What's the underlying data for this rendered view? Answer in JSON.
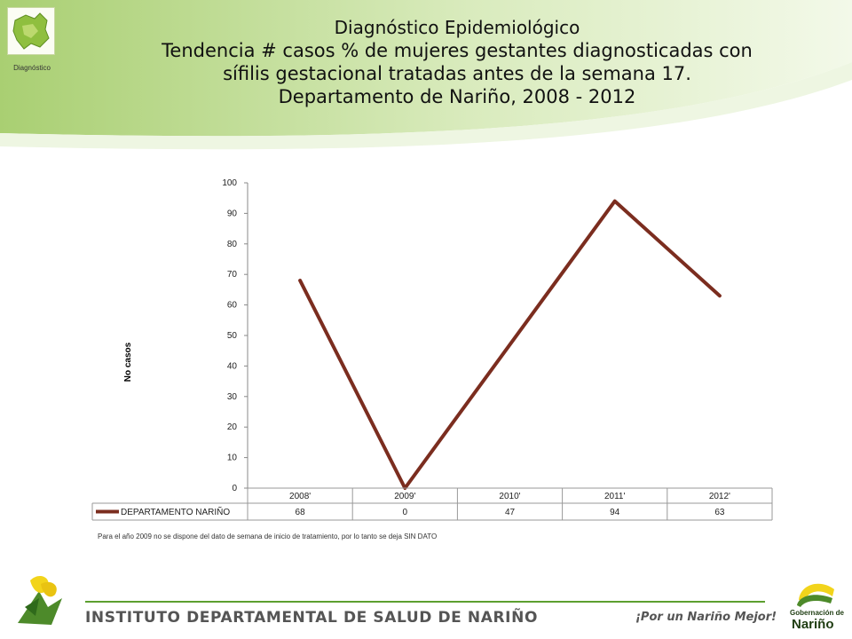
{
  "header": {
    "logo_caption": "Diagnóstico",
    "title_lines": [
      "Diagnóstico Epidemiológico",
      "Tendencia # casos % de mujeres gestantes diagnosticadas con",
      "sífilis gestacional tratadas antes de la semana 17.",
      "Departamento de Nariño,  2008 - 2012"
    ]
  },
  "chart_data": {
    "type": "line",
    "categories": [
      "2008'",
      "2009'",
      "2010'",
      "2011'",
      "2012'"
    ],
    "series": [
      {
        "name": "DEPARTAMENTO NARIÑO",
        "values": [
          68,
          0,
          47,
          94,
          63
        ],
        "color": "#7b2d1f"
      }
    ],
    "title": "",
    "xlabel": "",
    "ylabel": "No  casos",
    "ylim": [
      0,
      100
    ],
    "yticks": [
      0,
      10,
      20,
      30,
      40,
      50,
      60,
      70,
      80,
      90,
      100
    ],
    "legend": "data-table-below",
    "grid": false
  },
  "footnote": "Para el año 2009 no se dispone del dato de semana de inicio de tratamiento, por lo tanto se deja SIN DATO",
  "footer": {
    "institute": "INSTITUTO DEPARTAMENTAL DE SALUD DE NARIÑO",
    "slogan": "¡Por un Nariño Mejor!",
    "gob_line1": "Gobernación de",
    "gob_line2": "Nariño"
  },
  "colors": {
    "accent_green": "#8dbb4a",
    "line_brown": "#7b2d1f",
    "footer_green": "#5c9f2f"
  }
}
